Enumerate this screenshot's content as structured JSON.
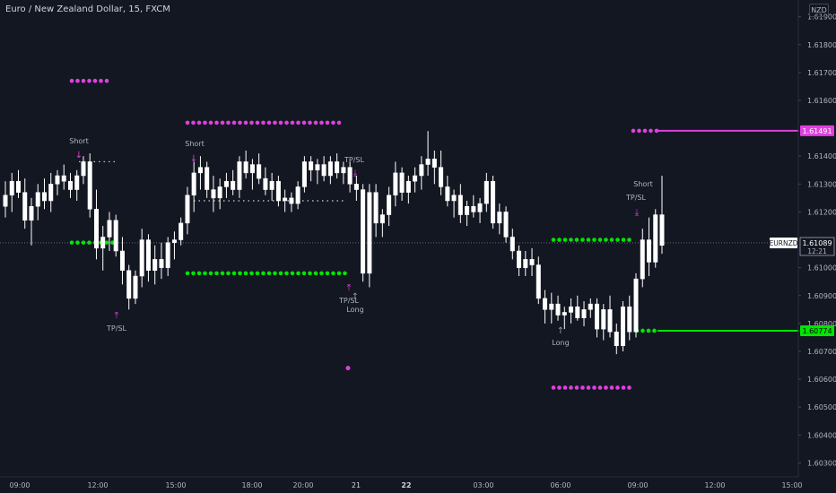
{
  "title": "Euro / New Zealand Dollar, 15, FXCM",
  "currency_badge": "NZD",
  "symbol_badge": "EURNZD",
  "countdown": "12:21",
  "colors": {
    "background": "#131722",
    "grid_text": "#b2b5be",
    "candle": "#ffffff",
    "short_signal": "#e040e0",
    "long_signal": "#00e600",
    "tp_sl_line": "#e040e0"
  },
  "chart_data": {
    "type": "candlestick",
    "ylim": [
      1.6025,
      1.6196
    ],
    "x_ticks": [
      "09:00",
      "12:00",
      "15:00",
      "18:00",
      "20:00",
      "21",
      "22",
      "03:00",
      "06:00",
      "09:00",
      "12:00",
      "15:00"
    ],
    "y_ticks": [
      "1.61900",
      "1.61800",
      "1.61700",
      "1.61600",
      "1.61400",
      "1.61300",
      "1.61200",
      "1.61000",
      "1.60900",
      "1.60800",
      "1.60700",
      "1.60600",
      "1.60500",
      "1.60400",
      "1.60300"
    ],
    "price_labels": {
      "current": "1.61089",
      "upper_level": "1.61491",
      "lower_level": "1.60774"
    },
    "candles": [
      [
        1.6122,
        1.6131,
        1.6118,
        1.6126
      ],
      [
        1.6126,
        1.6134,
        1.612,
        1.6131
      ],
      [
        1.6131,
        1.6135,
        1.6125,
        1.6127
      ],
      [
        1.6127,
        1.6132,
        1.6114,
        1.6117
      ],
      [
        1.6117,
        1.6125,
        1.6108,
        1.6122
      ],
      [
        1.6122,
        1.613,
        1.6117,
        1.6127
      ],
      [
        1.6127,
        1.6132,
        1.6121,
        1.6124
      ],
      [
        1.6124,
        1.6134,
        1.612,
        1.613
      ],
      [
        1.613,
        1.6135,
        1.6126,
        1.6133
      ],
      [
        1.6133,
        1.6137,
        1.6128,
        1.6131
      ],
      [
        1.6131,
        1.6134,
        1.6125,
        1.6128
      ],
      [
        1.6128,
        1.6135,
        1.6124,
        1.6133
      ],
      [
        1.6133,
        1.614,
        1.613,
        1.6138
      ],
      [
        1.6138,
        1.6141,
        1.6118,
        1.6121
      ],
      [
        1.6121,
        1.6128,
        1.6103,
        1.6107
      ],
      [
        1.6107,
        1.6115,
        1.6099,
        1.6111
      ],
      [
        1.6111,
        1.612,
        1.6106,
        1.6117
      ],
      [
        1.6117,
        1.6119,
        1.6104,
        1.6106
      ],
      [
        1.6106,
        1.6111,
        1.6094,
        1.6099
      ],
      [
        1.6099,
        1.6101,
        1.6085,
        1.6089
      ],
      [
        1.6089,
        1.6099,
        1.6087,
        1.6097
      ],
      [
        1.6097,
        1.6114,
        1.6093,
        1.611
      ],
      [
        1.611,
        1.6112,
        1.6095,
        1.6099
      ],
      [
        1.6099,
        1.6108,
        1.6094,
        1.6103
      ],
      [
        1.6103,
        1.6109,
        1.6096,
        1.61
      ],
      [
        1.61,
        1.6111,
        1.6097,
        1.6109
      ],
      [
        1.6109,
        1.6113,
        1.6103,
        1.611
      ],
      [
        1.611,
        1.6118,
        1.6108,
        1.6116
      ],
      [
        1.6116,
        1.6129,
        1.6112,
        1.6126
      ],
      [
        1.6126,
        1.6138,
        1.612,
        1.6134
      ],
      [
        1.6134,
        1.614,
        1.6128,
        1.6136
      ],
      [
        1.6136,
        1.6138,
        1.6125,
        1.6128
      ],
      [
        1.6128,
        1.6133,
        1.612,
        1.6125
      ],
      [
        1.6125,
        1.6132,
        1.6121,
        1.6129
      ],
      [
        1.6129,
        1.6134,
        1.6125,
        1.6131
      ],
      [
        1.6131,
        1.6135,
        1.6126,
        1.6128
      ],
      [
        1.6128,
        1.614,
        1.6125,
        1.6138
      ],
      [
        1.6138,
        1.6142,
        1.6132,
        1.6134
      ],
      [
        1.6134,
        1.6139,
        1.6128,
        1.6137
      ],
      [
        1.6137,
        1.6141,
        1.613,
        1.6132
      ],
      [
        1.6132,
        1.6136,
        1.6126,
        1.6128
      ],
      [
        1.6128,
        1.6134,
        1.6124,
        1.6131
      ],
      [
        1.6131,
        1.6133,
        1.6122,
        1.6124
      ],
      [
        1.6124,
        1.6128,
        1.612,
        1.6125
      ],
      [
        1.6125,
        1.6127,
        1.612,
        1.6123
      ],
      [
        1.6123,
        1.6131,
        1.6121,
        1.6129
      ],
      [
        1.6129,
        1.614,
        1.6127,
        1.6138
      ],
      [
        1.6138,
        1.614,
        1.6131,
        1.6135
      ],
      [
        1.6135,
        1.6139,
        1.613,
        1.6137
      ],
      [
        1.6137,
        1.614,
        1.6131,
        1.6133
      ],
      [
        1.6133,
        1.614,
        1.613,
        1.6138
      ],
      [
        1.6138,
        1.6141,
        1.6132,
        1.6134
      ],
      [
        1.6134,
        1.6138,
        1.613,
        1.6136
      ],
      [
        1.6136,
        1.6138,
        1.6127,
        1.613
      ],
      [
        1.613,
        1.6133,
        1.6124,
        1.6128
      ],
      [
        1.6128,
        1.613,
        1.6095,
        1.6098
      ],
      [
        1.6098,
        1.613,
        1.6093,
        1.6127
      ],
      [
        1.6127,
        1.613,
        1.6111,
        1.6116
      ],
      [
        1.6116,
        1.6121,
        1.6111,
        1.6119
      ],
      [
        1.6119,
        1.6129,
        1.6115,
        1.6126
      ],
      [
        1.6126,
        1.6138,
        1.6122,
        1.6134
      ],
      [
        1.6134,
        1.6136,
        1.6124,
        1.6127
      ],
      [
        1.6127,
        1.6133,
        1.6123,
        1.6131
      ],
      [
        1.6131,
        1.6136,
        1.6127,
        1.6133
      ],
      [
        1.6133,
        1.614,
        1.6128,
        1.6137
      ],
      [
        1.6137,
        1.6149,
        1.6133,
        1.6139
      ],
      [
        1.6139,
        1.6142,
        1.613,
        1.6136
      ],
      [
        1.6136,
        1.6142,
        1.6126,
        1.6129
      ],
      [
        1.6129,
        1.6133,
        1.6122,
        1.6124
      ],
      [
        1.6124,
        1.6128,
        1.6118,
        1.6126
      ],
      [
        1.6126,
        1.613,
        1.6116,
        1.6119
      ],
      [
        1.6119,
        1.6124,
        1.6115,
        1.6122
      ],
      [
        1.6122,
        1.6126,
        1.6118,
        1.612
      ],
      [
        1.612,
        1.6125,
        1.6116,
        1.6123
      ],
      [
        1.6123,
        1.6134,
        1.612,
        1.6131
      ],
      [
        1.6131,
        1.6133,
        1.6114,
        1.6116
      ],
      [
        1.6116,
        1.6123,
        1.6112,
        1.612
      ],
      [
        1.612,
        1.6122,
        1.6109,
        1.6111
      ],
      [
        1.6111,
        1.6114,
        1.6103,
        1.6106
      ],
      [
        1.6106,
        1.6108,
        1.6097,
        1.61
      ],
      [
        1.61,
        1.6106,
        1.6097,
        1.6103
      ],
      [
        1.6103,
        1.6107,
        1.6097,
        1.6101
      ],
      [
        1.6101,
        1.6104,
        1.6087,
        1.6089
      ],
      [
        1.6089,
        1.6092,
        1.608,
        1.6085
      ],
      [
        1.6085,
        1.6091,
        1.608,
        1.6087
      ],
      [
        1.6087,
        1.609,
        1.6081,
        1.6083
      ],
      [
        1.6083,
        1.6086,
        1.6078,
        1.6084
      ],
      [
        1.6084,
        1.6089,
        1.608,
        1.6086
      ],
      [
        1.6086,
        1.609,
        1.6081,
        1.6082
      ],
      [
        1.6082,
        1.6088,
        1.6079,
        1.6085
      ],
      [
        1.6085,
        1.6089,
        1.6082,
        1.6087
      ],
      [
        1.6087,
        1.6089,
        1.6075,
        1.6078
      ],
      [
        1.6078,
        1.6087,
        1.6074,
        1.6085
      ],
      [
        1.6085,
        1.609,
        1.6075,
        1.6077
      ],
      [
        1.6077,
        1.608,
        1.6069,
        1.6072
      ],
      [
        1.6072,
        1.6088,
        1.607,
        1.6086
      ],
      [
        1.6086,
        1.609,
        1.6074,
        1.6077
      ],
      [
        1.6077,
        1.6098,
        1.6075,
        1.6096
      ],
      [
        1.6096,
        1.6114,
        1.6093,
        1.611
      ],
      [
        1.611,
        1.6118,
        1.6097,
        1.6102
      ],
      [
        1.6102,
        1.6121,
        1.61,
        1.6119
      ],
      [
        1.6119,
        1.6133,
        1.6105,
        1.6108
      ]
    ]
  },
  "annotations": {
    "short_label": "Short",
    "long_label": "Long",
    "tp_sl_label": "TP/SL"
  }
}
